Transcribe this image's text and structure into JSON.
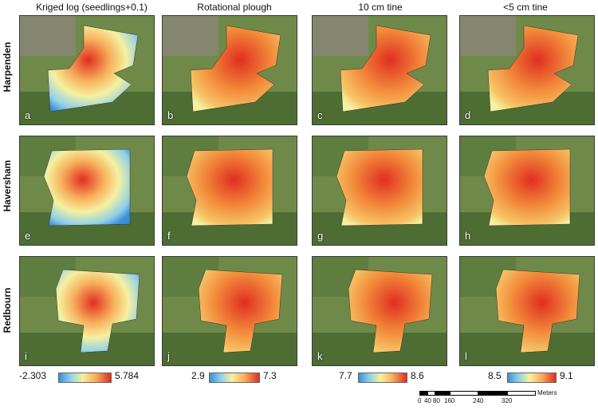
{
  "columns": [
    {
      "title": "Kriged log (seedlings+0.1)"
    },
    {
      "title": "Rotational plough"
    },
    {
      "title": "10 cm tine"
    },
    {
      "title": "<5 cm tine"
    }
  ],
  "rows": [
    {
      "title": "Harpenden"
    },
    {
      "title": "Haversham"
    },
    {
      "title": "Redbourn"
    }
  ],
  "panels": [
    "a",
    "b",
    "c",
    "d",
    "e",
    "f",
    "g",
    "h",
    "i",
    "j",
    "k",
    "l"
  ],
  "legends": [
    {
      "min": "-2.303",
      "max": "5.784"
    },
    {
      "min": "2.9",
      "max": "7.3"
    },
    {
      "min": "7.7",
      "max": "8.6"
    },
    {
      "min": "8.5",
      "max": "9.1"
    }
  ],
  "scalebar": {
    "units": "Meters",
    "ticks": [
      "0",
      "40",
      "80",
      "160",
      "240",
      "320"
    ]
  },
  "colors": {
    "low": "#3d8fd6",
    "mid": "#f4f1a0",
    "high": "#e02e21",
    "field": "#6f8a48",
    "urban": "#8a8478"
  }
}
